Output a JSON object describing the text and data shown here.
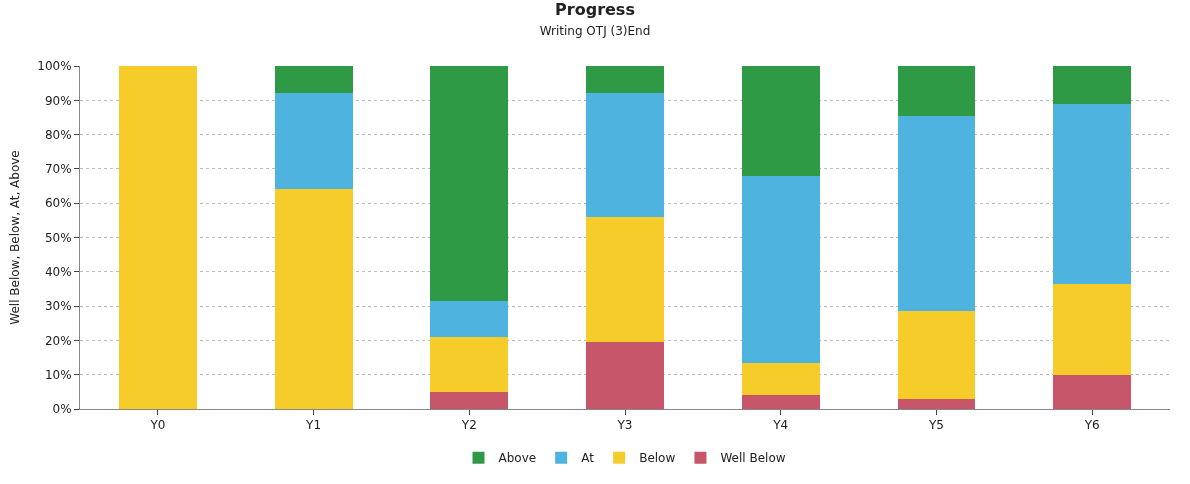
{
  "chart_data": {
    "type": "bar",
    "title": "Progress",
    "subtitle": "Writing OTJ (3)End",
    "ylabel": "Well Below, Below, At, Above",
    "categories": [
      "Y0",
      "Y1",
      "Y2",
      "Y3",
      "Y4",
      "Y5",
      "Y6"
    ],
    "stacked": true,
    "series": [
      {
        "name": "Well Below",
        "color": "#c8566b",
        "values": [
          0,
          0,
          5,
          19.5,
          4,
          3,
          10
        ]
      },
      {
        "name": "Below",
        "color": "#f5cc2a",
        "values": [
          100,
          64,
          16,
          36.5,
          9.5,
          25.5,
          26.5
        ]
      },
      {
        "name": "At",
        "color": "#4fb3e0",
        "values": [
          0,
          28,
          10.5,
          36,
          54.5,
          57,
          52.5
        ]
      },
      {
        "name": "Above",
        "color": "#2e9a46",
        "values": [
          0,
          8,
          68.5,
          8,
          32,
          14.5,
          11
        ]
      }
    ],
    "ylim": [
      0,
      100
    ],
    "yticks": [
      {
        "value": 0,
        "label": "0%"
      },
      {
        "value": 10,
        "label": "10%"
      },
      {
        "value": 20,
        "label": "20%"
      },
      {
        "value": 30,
        "label": "30%"
      },
      {
        "value": 40,
        "label": "40%"
      },
      {
        "value": 50,
        "label": "50%"
      },
      {
        "value": 60,
        "label": "60%"
      },
      {
        "value": 70,
        "label": "70%"
      },
      {
        "value": 80,
        "label": "80%"
      },
      {
        "value": 90,
        "label": "90%"
      },
      {
        "value": 100,
        "label": "100%"
      }
    ],
    "grid": true,
    "legend": "bottom"
  }
}
